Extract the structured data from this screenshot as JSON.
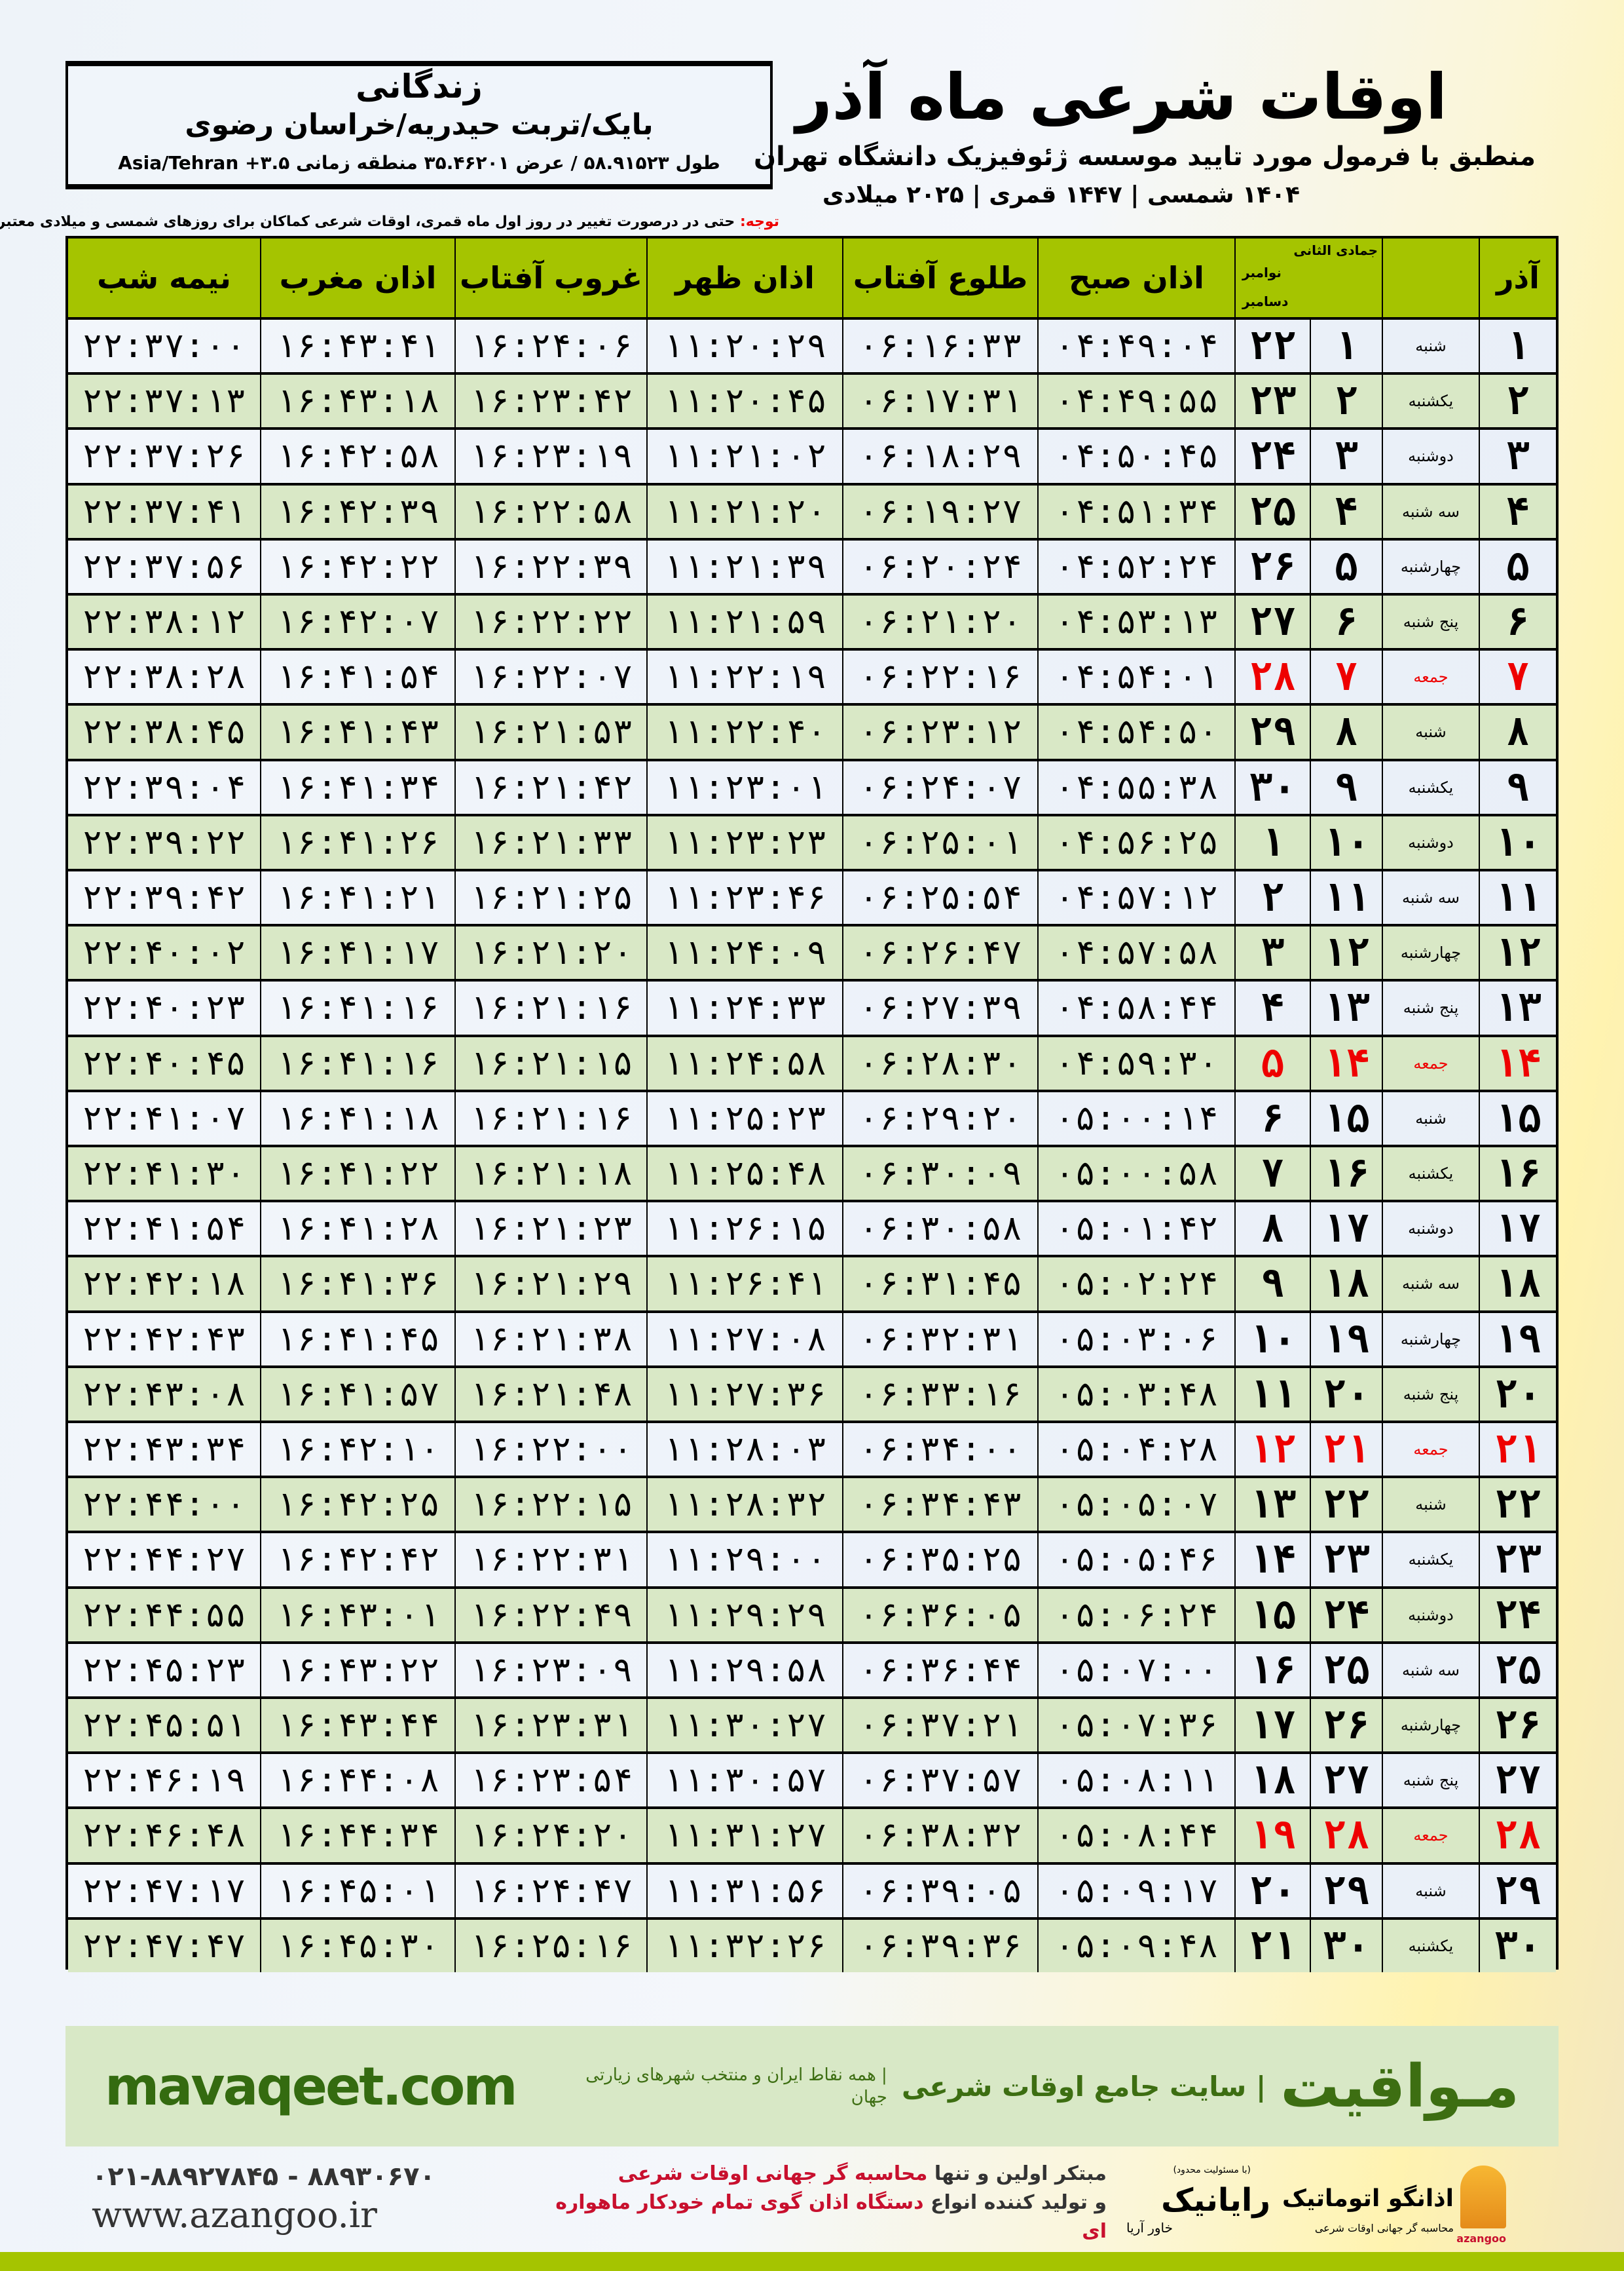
{
  "location": {
    "name": "زندگانی",
    "path": "بایک/تربت حیدریه/خراسان رضوی",
    "coords": "طول ۵۸.۹۱۵۲۳ / عرض ۳۵.۴۶۲۰۱ منطقه زمانی Asia/Tehran +۳.۵"
  },
  "header": {
    "title": "اوقات شرعی ماه آذر",
    "subtitle": "منطبق با فرمول مورد تایید موسسه ژئوفیزیک دانشگاه تهران",
    "dates": "۱۴۰۴ شمسی | ۱۴۴۷ قمری | ۲۰۲۵ میلادی"
  },
  "notice": {
    "label": "توجه:",
    "text": " حتی در درصورت تغییر در روز اول ماه قمری، اوقات شرعی کماکان برای روزهای شمسی و میلادی معتبر است."
  },
  "table": {
    "columns": {
      "azar": "آذر",
      "hijri": "جمادی الثانی",
      "nov": "نوامبر",
      "dec": "دسامبر",
      "fajr": "اذان صبح",
      "sunrise": "طلوع آفتاب",
      "dhuhr": "اذان ظهر",
      "sunset": "غروب آفتاب",
      "maghrib": "اذان مغرب",
      "midnight": "نیمه شب"
    },
    "colors": {
      "header": "#a5c400",
      "friday": "#e00000",
      "row_alt": "#d9e8c6"
    },
    "rows": [
      [
        "۱",
        "شنبه",
        "۱",
        "۲۲",
        "۰۴:۴۹:۰۴",
        "۰۶:۱۶:۳۳",
        "۱۱:۲۰:۲۹",
        "۱۶:۲۴:۰۶",
        "۱۶:۴۳:۴۱",
        "۲۲:۳۷:۰۰"
      ],
      [
        "۲",
        "یکشنبه",
        "۲",
        "۲۳",
        "۰۴:۴۹:۵۵",
        "۰۶:۱۷:۳۱",
        "۱۱:۲۰:۴۵",
        "۱۶:۲۳:۴۲",
        "۱۶:۴۳:۱۸",
        "۲۲:۳۷:۱۳"
      ],
      [
        "۳",
        "دوشنبه",
        "۳",
        "۲۴",
        "۰۴:۵۰:۴۵",
        "۰۶:۱۸:۲۹",
        "۱۱:۲۱:۰۲",
        "۱۶:۲۳:۱۹",
        "۱۶:۴۲:۵۸",
        "۲۲:۳۷:۲۶"
      ],
      [
        "۴",
        "سه شنبه",
        "۴",
        "۲۵",
        "۰۴:۵۱:۳۴",
        "۰۶:۱۹:۲۷",
        "۱۱:۲۱:۲۰",
        "۱۶:۲۲:۵۸",
        "۱۶:۴۲:۳۹",
        "۲۲:۳۷:۴۱"
      ],
      [
        "۵",
        "چهارشنبه",
        "۵",
        "۲۶",
        "۰۴:۵۲:۲۴",
        "۰۶:۲۰:۲۴",
        "۱۱:۲۱:۳۹",
        "۱۶:۲۲:۳۹",
        "۱۶:۴۲:۲۲",
        "۲۲:۳۷:۵۶"
      ],
      [
        "۶",
        "پنج شنبه",
        "۶",
        "۲۷",
        "۰۴:۵۳:۱۳",
        "۰۶:۲۱:۲۰",
        "۱۱:۲۱:۵۹",
        "۱۶:۲۲:۲۲",
        "۱۶:۴۲:۰۷",
        "۲۲:۳۸:۱۲"
      ],
      [
        "۷",
        "جمعه",
        "۷",
        "۲۸",
        "۰۴:۵۴:۰۱",
        "۰۶:۲۲:۱۶",
        "۱۱:۲۲:۱۹",
        "۱۶:۲۲:۰۷",
        "۱۶:۴۱:۵۴",
        "۲۲:۳۸:۲۸"
      ],
      [
        "۸",
        "شنبه",
        "۸",
        "۲۹",
        "۰۴:۵۴:۵۰",
        "۰۶:۲۳:۱۲",
        "۱۱:۲۲:۴۰",
        "۱۶:۲۱:۵۳",
        "۱۶:۴۱:۴۳",
        "۲۲:۳۸:۴۵"
      ],
      [
        "۹",
        "یکشنبه",
        "۹",
        "۳۰",
        "۰۴:۵۵:۳۸",
        "۰۶:۲۴:۰۷",
        "۱۱:۲۳:۰۱",
        "۱۶:۲۱:۴۲",
        "۱۶:۴۱:۳۴",
        "۲۲:۳۹:۰۴"
      ],
      [
        "۱۰",
        "دوشنبه",
        "۱۰",
        "۱",
        "۰۴:۵۶:۲۵",
        "۰۶:۲۵:۰۱",
        "۱۱:۲۳:۲۳",
        "۱۶:۲۱:۳۳",
        "۱۶:۴۱:۲۶",
        "۲۲:۳۹:۲۲"
      ],
      [
        "۱۱",
        "سه شنبه",
        "۱۱",
        "۲",
        "۰۴:۵۷:۱۲",
        "۰۶:۲۵:۵۴",
        "۱۱:۲۳:۴۶",
        "۱۶:۲۱:۲۵",
        "۱۶:۴۱:۲۱",
        "۲۲:۳۹:۴۲"
      ],
      [
        "۱۲",
        "چهارشنبه",
        "۱۲",
        "۳",
        "۰۴:۵۷:۵۸",
        "۰۶:۲۶:۴۷",
        "۱۱:۲۴:۰۹",
        "۱۶:۲۱:۲۰",
        "۱۶:۴۱:۱۷",
        "۲۲:۴۰:۰۲"
      ],
      [
        "۱۳",
        "پنج شنبه",
        "۱۳",
        "۴",
        "۰۴:۵۸:۴۴",
        "۰۶:۲۷:۳۹",
        "۱۱:۲۴:۳۳",
        "۱۶:۲۱:۱۶",
        "۱۶:۴۱:۱۶",
        "۲۲:۴۰:۲۳"
      ],
      [
        "۱۴",
        "جمعه",
        "۱۴",
        "۵",
        "۰۴:۵۹:۳۰",
        "۰۶:۲۸:۳۰",
        "۱۱:۲۴:۵۸",
        "۱۶:۲۱:۱۵",
        "۱۶:۴۱:۱۶",
        "۲۲:۴۰:۴۵"
      ],
      [
        "۱۵",
        "شنبه",
        "۱۵",
        "۶",
        "۰۵:۰۰:۱۴",
        "۰۶:۲۹:۲۰",
        "۱۱:۲۵:۲۳",
        "۱۶:۲۱:۱۶",
        "۱۶:۴۱:۱۸",
        "۲۲:۴۱:۰۷"
      ],
      [
        "۱۶",
        "یکشنبه",
        "۱۶",
        "۷",
        "۰۵:۰۰:۵۸",
        "۰۶:۳۰:۰۹",
        "۱۱:۲۵:۴۸",
        "۱۶:۲۱:۱۸",
        "۱۶:۴۱:۲۲",
        "۲۲:۴۱:۳۰"
      ],
      [
        "۱۷",
        "دوشنبه",
        "۱۷",
        "۸",
        "۰۵:۰۱:۴۲",
        "۰۶:۳۰:۵۸",
        "۱۱:۲۶:۱۵",
        "۱۶:۲۱:۲۳",
        "۱۶:۴۱:۲۸",
        "۲۲:۴۱:۵۴"
      ],
      [
        "۱۸",
        "سه شنبه",
        "۱۸",
        "۹",
        "۰۵:۰۲:۲۴",
        "۰۶:۳۱:۴۵",
        "۱۱:۲۶:۴۱",
        "۱۶:۲۱:۲۹",
        "۱۶:۴۱:۳۶",
        "۲۲:۴۲:۱۸"
      ],
      [
        "۱۹",
        "چهارشنبه",
        "۱۹",
        "۱۰",
        "۰۵:۰۳:۰۶",
        "۰۶:۳۲:۳۱",
        "۱۱:۲۷:۰۸",
        "۱۶:۲۱:۳۸",
        "۱۶:۴۱:۴۵",
        "۲۲:۴۲:۴۳"
      ],
      [
        "۲۰",
        "پنج شنبه",
        "۲۰",
        "۱۱",
        "۰۵:۰۳:۴۸",
        "۰۶:۳۳:۱۶",
        "۱۱:۲۷:۳۶",
        "۱۶:۲۱:۴۸",
        "۱۶:۴۱:۵۷",
        "۲۲:۴۳:۰۸"
      ],
      [
        "۲۱",
        "جمعه",
        "۲۱",
        "۱۲",
        "۰۵:۰۴:۲۸",
        "۰۶:۳۴:۰۰",
        "۱۱:۲۸:۰۳",
        "۱۶:۲۲:۰۰",
        "۱۶:۴۲:۱۰",
        "۲۲:۴۳:۳۴"
      ],
      [
        "۲۲",
        "شنبه",
        "۲۲",
        "۱۳",
        "۰۵:۰۵:۰۷",
        "۰۶:۳۴:۴۳",
        "۱۱:۲۸:۳۲",
        "۱۶:۲۲:۱۵",
        "۱۶:۴۲:۲۵",
        "۲۲:۴۴:۰۰"
      ],
      [
        "۲۳",
        "یکشنبه",
        "۲۳",
        "۱۴",
        "۰۵:۰۵:۴۶",
        "۰۶:۳۵:۲۵",
        "۱۱:۲۹:۰۰",
        "۱۶:۲۲:۳۱",
        "۱۶:۴۲:۴۲",
        "۲۲:۴۴:۲۷"
      ],
      [
        "۲۴",
        "دوشنبه",
        "۲۴",
        "۱۵",
        "۰۵:۰۶:۲۴",
        "۰۶:۳۶:۰۵",
        "۱۱:۲۹:۲۹",
        "۱۶:۲۲:۴۹",
        "۱۶:۴۳:۰۱",
        "۲۲:۴۴:۵۵"
      ],
      [
        "۲۵",
        "سه شنبه",
        "۲۵",
        "۱۶",
        "۰۵:۰۷:۰۰",
        "۰۶:۳۶:۴۴",
        "۱۱:۲۹:۵۸",
        "۱۶:۲۳:۰۹",
        "۱۶:۴۳:۲۲",
        "۲۲:۴۵:۲۳"
      ],
      [
        "۲۶",
        "چهارشنبه",
        "۲۶",
        "۱۷",
        "۰۵:۰۷:۳۶",
        "۰۶:۳۷:۲۱",
        "۱۱:۳۰:۲۷",
        "۱۶:۲۳:۳۱",
        "۱۶:۴۳:۴۴",
        "۲۲:۴۵:۵۱"
      ],
      [
        "۲۷",
        "پنج شنبه",
        "۲۷",
        "۱۸",
        "۰۵:۰۸:۱۱",
        "۰۶:۳۷:۵۷",
        "۱۱:۳۰:۵۷",
        "۱۶:۲۳:۵۴",
        "۱۶:۴۴:۰۸",
        "۲۲:۴۶:۱۹"
      ],
      [
        "۲۸",
        "جمعه",
        "۲۸",
        "۱۹",
        "۰۵:۰۸:۴۴",
        "۰۶:۳۸:۳۲",
        "۱۱:۳۱:۲۷",
        "۱۶:۲۴:۲۰",
        "۱۶:۴۴:۳۴",
        "۲۲:۴۶:۴۸"
      ],
      [
        "۲۹",
        "شنبه",
        "۲۹",
        "۲۰",
        "۰۵:۰۹:۱۷",
        "۰۶:۳۹:۰۵",
        "۱۱:۳۱:۵۶",
        "۱۶:۲۴:۴۷",
        "۱۶:۴۵:۰۱",
        "۲۲:۴۷:۱۷"
      ],
      [
        "۳۰",
        "یکشنبه",
        "۳۰",
        "۲۱",
        "۰۵:۰۹:۴۸",
        "۰۶:۳۹:۳۶",
        "۱۱:۳۲:۲۶",
        "۱۶:۲۵:۱۶",
        "۱۶:۴۵:۳۰",
        "۲۲:۴۷:۴۷"
      ]
    ],
    "friday_label": "جمعه"
  },
  "banner": {
    "site": "mavaqeet.com",
    "brand": "مـواقیت",
    "tagline": "| سایت جامع اوقات شرعی",
    "sub": "| همه نقاط ایران و منتخب شهرهای زیارتی جهان",
    "color": "#3d6e12"
  },
  "footer": {
    "phone": "۰۲۱-۸۸۹۲۷۸۴۵ - ۸۸۹۳۰۶۷۰",
    "web": "www.azangoo.ir",
    "line1_a": "مبتکر اولین و تنها ",
    "line1_b": "محاسبه گر جهانی اوقات شرعی",
    "line2_a": "و تولید کننده انواع ",
    "line2_b": "دستگاه اذان گوی تمام خودکار ماهواره ای",
    "raya_main": "رایانیک",
    "raya_small": "(با مسئولیت محدود)",
    "raya_side": "خاور آریا",
    "azan_main": "اذانگو اتوماتیک",
    "azan_sub": "محاسبه گر جهانی اوقات شرعی",
    "azan_en": "azangoo"
  }
}
